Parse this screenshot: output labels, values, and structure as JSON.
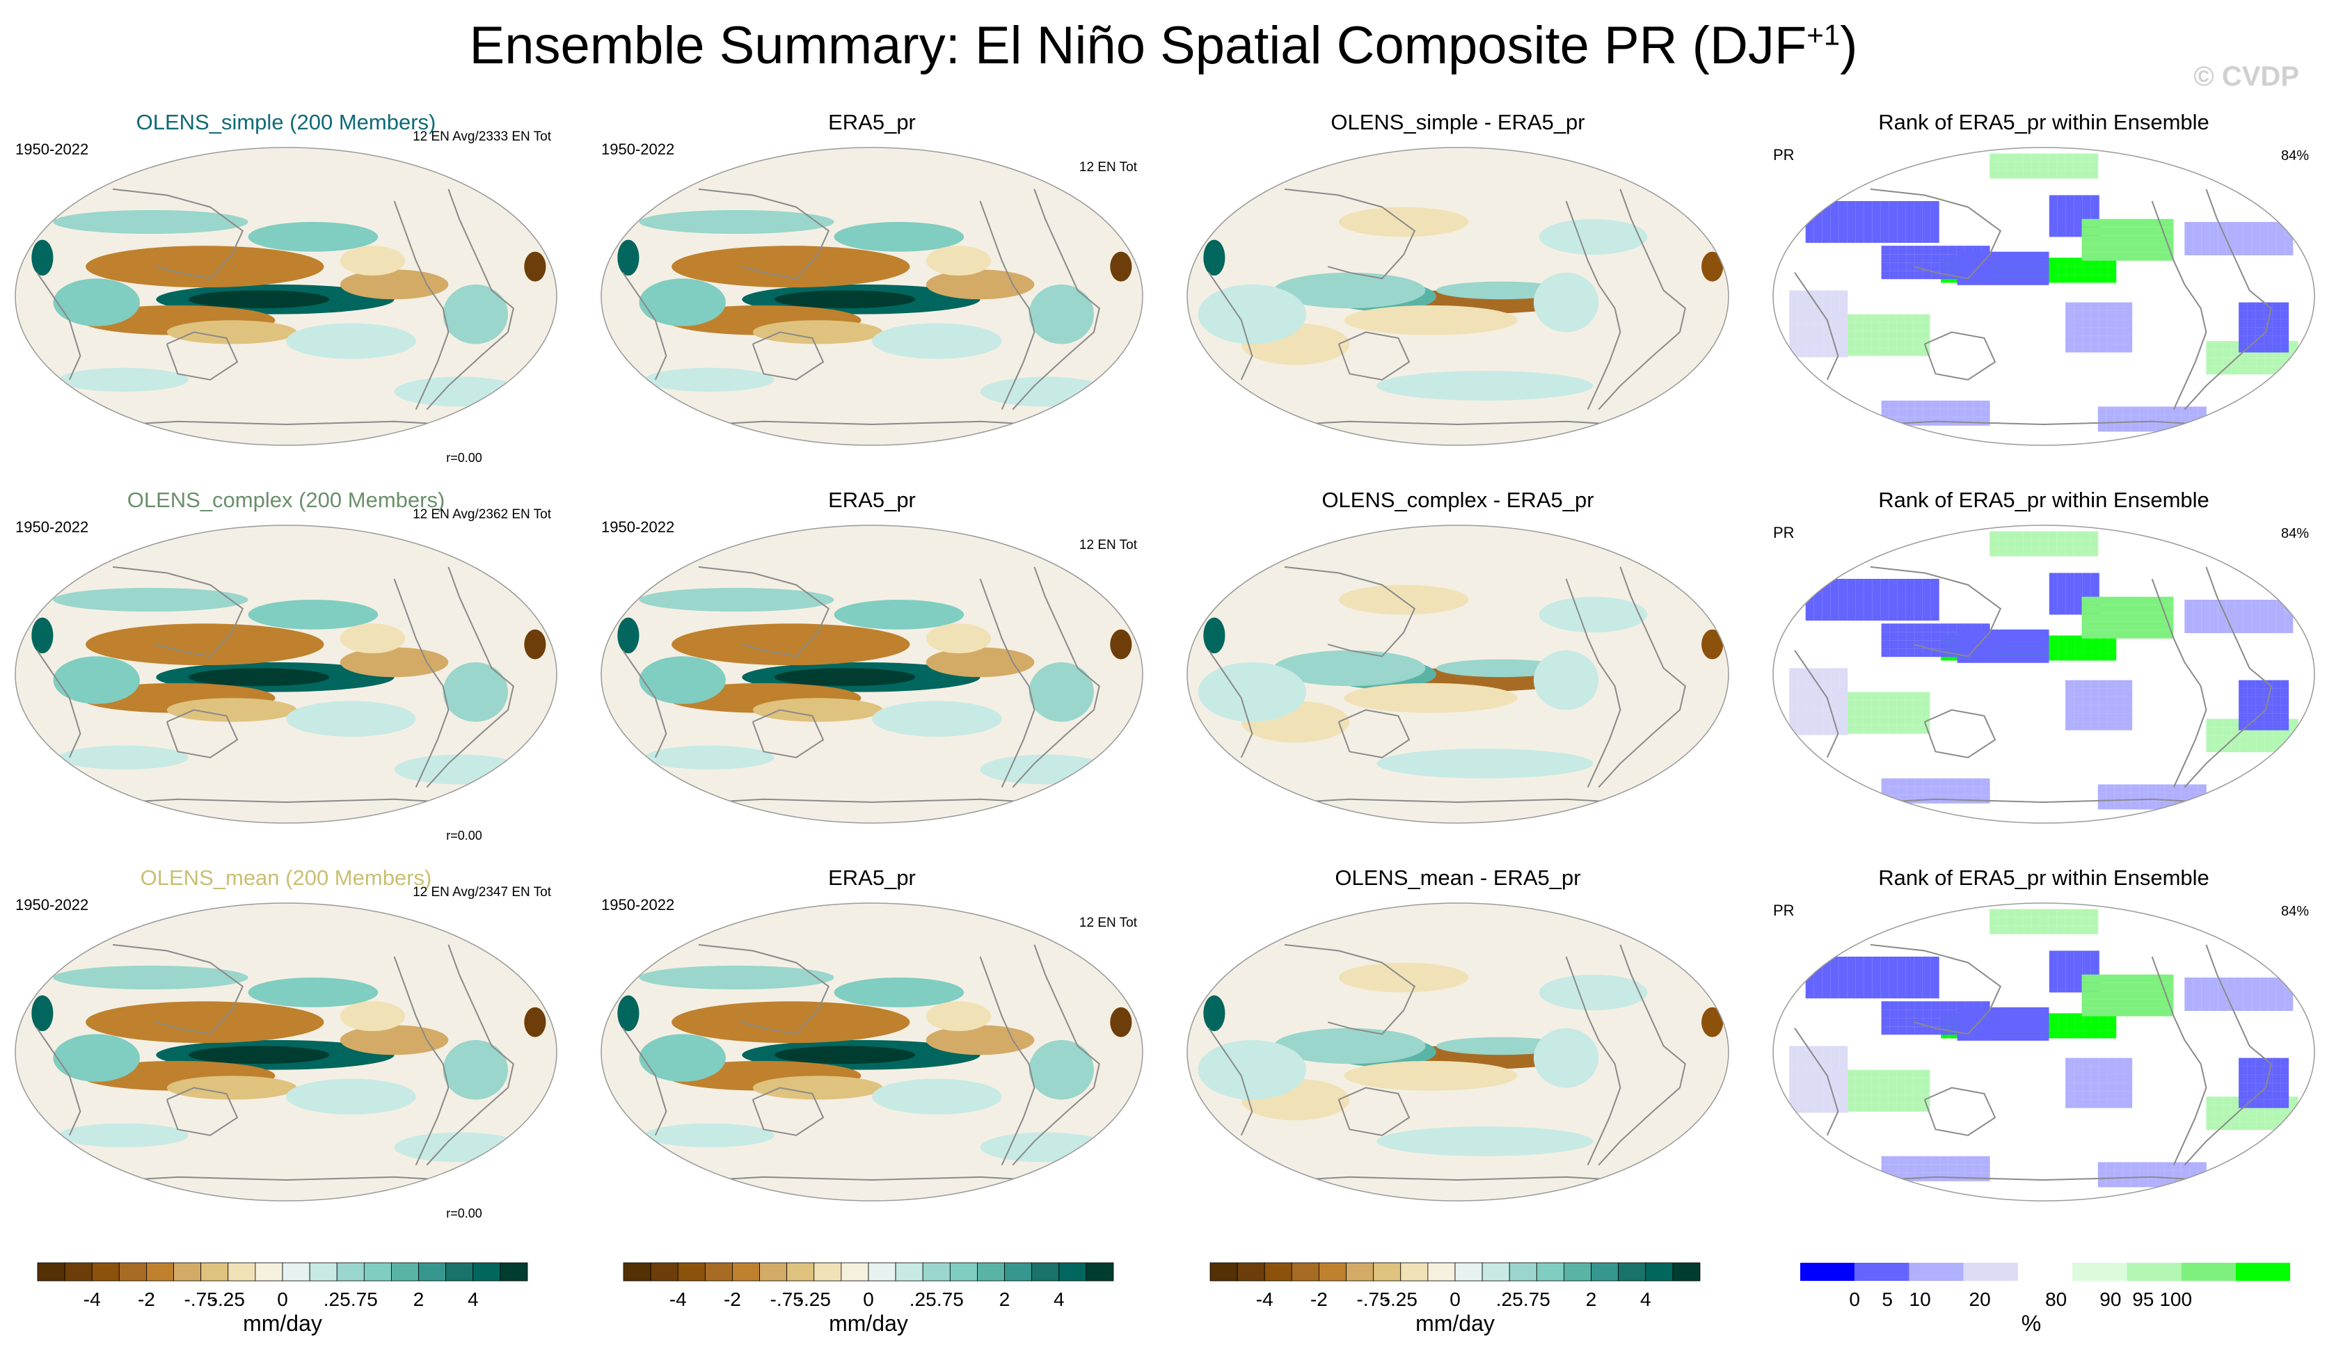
{
  "title": {
    "main": "Ensemble Summary: El Niño Spatial Composite PR (DJF",
    "sup": "+1",
    "close": ")"
  },
  "watermark": "© CVDP",
  "colors": {
    "pr_scale": [
      "#543005",
      "#6d3e09",
      "#8c510a",
      "#a86b23",
      "#bf812d",
      "#d4ab66",
      "#dfc27d",
      "#f0e2b6",
      "#f6f0df",
      "#e6f3f1",
      "#c7eae5",
      "#9ad6cc",
      "#80cdc1",
      "#5ab4a5",
      "#35978f",
      "#19736a",
      "#01665e",
      "#003c30"
    ],
    "rank_scale": [
      "#0000ff",
      "#6464ff",
      "#b0b0ff",
      "#dcdcf6",
      "#ffffff",
      "#dcfbdc",
      "#b4f7b4",
      "#7ef07e",
      "#00ff00"
    ],
    "ocean_bg": "#f4efe4"
  },
  "chart_data": {
    "type": "heatmap",
    "rows": [
      {
        "model_title": "OLENS_simple (200 Members)",
        "model_title_color": "#0e6a76",
        "period": "1950-2022",
        "model_stat": "12 EN Avg/2333 EN Tot",
        "corr": "r=0.00",
        "obs_title": "ERA5_pr",
        "obs_period": "1950-2022",
        "obs_stat": "12 EN Tot",
        "diff_title": "OLENS_simple - ERA5_pr",
        "rank_title": "Rank of ERA5_pr within Ensemble",
        "rank_var": "PR",
        "rank_pct": "84%"
      },
      {
        "model_title": "OLENS_complex (200 Members)",
        "model_title_color": "#6a8f6b",
        "period": "1950-2022",
        "model_stat": "12 EN Avg/2362 EN Tot",
        "corr": "r=0.00",
        "obs_title": "ERA5_pr",
        "obs_period": "1950-2022",
        "obs_stat": "12 EN Tot",
        "diff_title": "OLENS_complex - ERA5_pr",
        "rank_title": "Rank of ERA5_pr within Ensemble",
        "rank_var": "PR",
        "rank_pct": "84%"
      },
      {
        "model_title": "OLENS_mean (200 Members)",
        "model_title_color": "#c9bf72",
        "period": "1950-2022",
        "model_stat": "12 EN Avg/2347 EN Tot",
        "corr": "r=0.00",
        "obs_title": "ERA5_pr",
        "obs_period": "1950-2022",
        "obs_stat": "12 EN Tot",
        "diff_title": "OLENS_mean - ERA5_pr",
        "rank_title": "Rank of ERA5_pr within Ensemble",
        "rank_var": "PR",
        "rank_pct": "84%"
      }
    ],
    "pr_colorbar": {
      "ticks": [
        "-4",
        "-2",
        "-.75",
        "-.25",
        "0",
        ".25",
        ".75",
        "2",
        "4"
      ],
      "unit": "mm/day"
    },
    "rank_colorbar": {
      "ticks": [
        "0",
        "5",
        "10",
        "20",
        "80",
        "90",
        "95",
        "100"
      ],
      "unit": "%"
    }
  }
}
